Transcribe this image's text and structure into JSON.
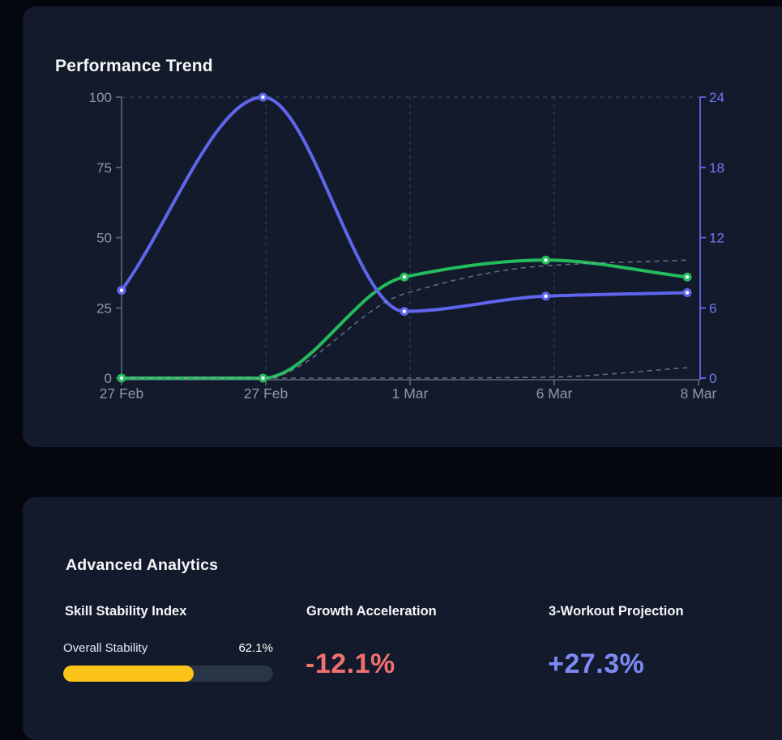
{
  "theme": {
    "page_bg": "#05070f",
    "card_bg": "#121a2b",
    "text_bright": "#f5f6f8"
  },
  "chart_data": {
    "type": "line",
    "title": "Performance Trend",
    "categories": [
      "27 Feb",
      "27 Feb",
      "1 Mar",
      "6 Mar",
      "8 Mar"
    ],
    "series": [
      {
        "name": "green-performance-line",
        "axis": "left",
        "color": "#24bb5c",
        "dashed": false,
        "dots": true,
        "values": [
          0,
          0,
          36,
          42,
          36
        ]
      },
      {
        "name": "purple-intensity-line",
        "axis": "right",
        "color": "#5f66ed",
        "dashed": false,
        "dots": true,
        "values": [
          7.5,
          24,
          5.7,
          7,
          7.3
        ]
      },
      {
        "name": "dashed-trend-upper",
        "axis": "left",
        "color": "#97a0b0",
        "dashed": true,
        "dots": false,
        "values": [
          0,
          0,
          30,
          40,
          42
        ]
      },
      {
        "name": "dashed-trend-lower",
        "axis": "left",
        "color": "#97a0b0",
        "dashed": true,
        "dots": false,
        "values": [
          0,
          0,
          0,
          0.3,
          3.7
        ]
      }
    ],
    "left_axis": {
      "range": [
        0,
        100
      ],
      "ticks": [
        0,
        25,
        50,
        75,
        100
      ],
      "label_color": "#8f98a8",
      "line_color": "#5d6878"
    },
    "right_axis": {
      "range": [
        0,
        24
      ],
      "ticks": [
        0,
        6,
        12,
        18,
        24
      ],
      "label_color": "#7478f2",
      "line_color": "#6468f0"
    },
    "x_axis": {
      "label_color": "#8f98a8",
      "line_color": "#5d6878"
    },
    "grid": {
      "top_dashed_line": true,
      "vertical_dashed_at_category_indices": [
        1,
        2,
        3
      ],
      "gridline_color": "rgba(130,144,168,0.32)"
    },
    "legend": "none"
  },
  "analytics_card": {
    "title": "Advanced Analytics",
    "stability": {
      "title": "Skill Stability Index",
      "label": "Overall Stability",
      "value": "62.1%",
      "bar_color": "#fcc419",
      "track_color": "#2a3447"
    },
    "growth": {
      "title": "Growth Acceleration",
      "value": "-12.1%",
      "color": "#f37070"
    },
    "projection": {
      "title": "3-Workout Projection",
      "value": "+27.3%",
      "color": "#7f89f6"
    }
  }
}
